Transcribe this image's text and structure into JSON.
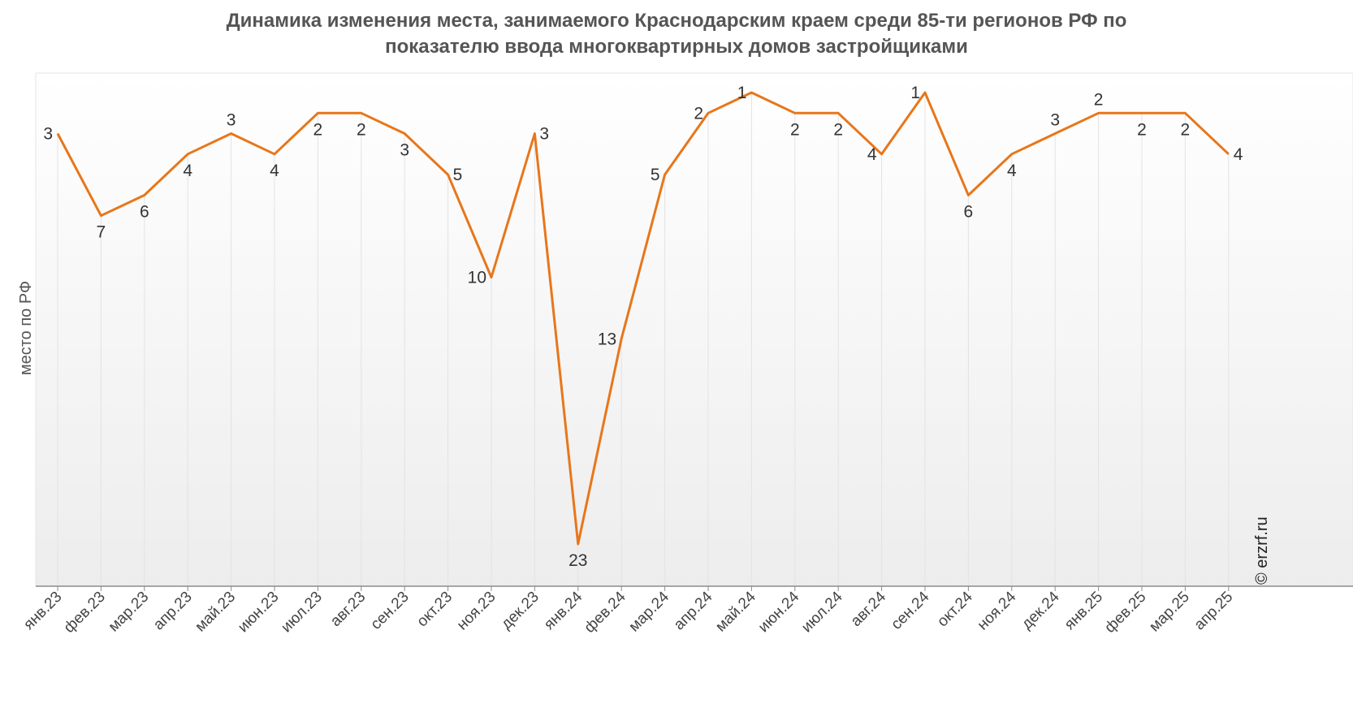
{
  "chart_data": {
    "type": "line",
    "title_line1": "Динамика изменения места, занимаемого Краснодарским краем среди 85-ти регионов РФ по",
    "title_line2": "показателю ввода многоквартирных домов застройщиками",
    "ylabel": "место по РФ",
    "credit": "© erzrf.ru",
    "y_reversed": true,
    "ylim": [
      1,
      23
    ],
    "grid": "vertical",
    "line_color": "#e8761a",
    "categories": [
      "янв.23",
      "фев.23",
      "мар.23",
      "апр.23",
      "май.23",
      "июн.23",
      "июл.23",
      "авг.23",
      "сен.23",
      "окт.23",
      "ноя.23",
      "дек.23",
      "янв.24",
      "фев.24",
      "мар.24",
      "апр.24",
      "май.24",
      "июн.24",
      "июл.24",
      "авг.24",
      "сен.24",
      "окт.24",
      "ноя.24",
      "дек.24",
      "янв.25",
      "фев.25",
      "мар.25",
      "апр.25"
    ],
    "values": [
      3,
      7,
      6,
      4,
      3,
      4,
      2,
      2,
      3,
      5,
      10,
      3,
      23,
      13,
      5,
      2,
      1,
      2,
      2,
      4,
      1,
      6,
      4,
      3,
      2,
      2,
      2,
      4
    ],
    "label_positions": [
      "left",
      "below",
      "below",
      "below",
      "above",
      "below",
      "below",
      "below",
      "below",
      "right",
      "left",
      "right",
      "below",
      "left",
      "left",
      "left",
      "left",
      "below",
      "below",
      "left",
      "left",
      "below",
      "below",
      "above",
      "above",
      "below",
      "below",
      "right"
    ]
  }
}
